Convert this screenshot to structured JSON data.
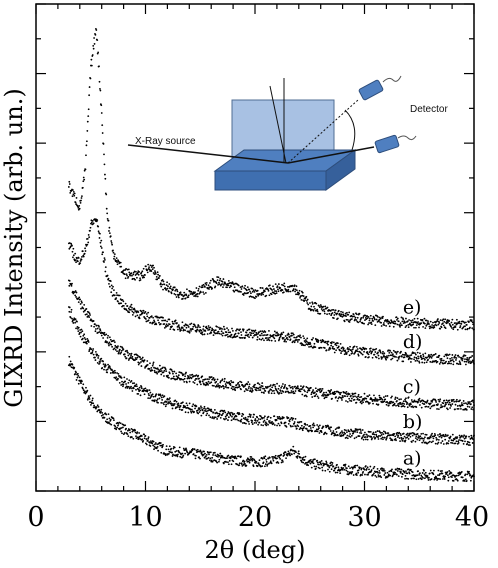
{
  "chart_data": {
    "type": "scatter",
    "xlabel": "2θ (deg)",
    "ylabel": "GIXRD Intensity (arb. un.)",
    "xlim": [
      0,
      40
    ],
    "x_ticks": [
      0,
      10,
      20,
      30,
      40
    ],
    "y_ticks_labeled": false,
    "grid": false,
    "series": [
      {
        "name": "a)",
        "x": [
          3,
          4,
          5,
          6,
          8,
          10,
          12,
          15,
          18,
          20,
          22,
          23.5,
          25,
          28,
          32,
          36,
          40
        ],
        "y": [
          1.8,
          1.5,
          1.25,
          1.05,
          0.85,
          0.7,
          0.55,
          0.5,
          0.42,
          0.4,
          0.42,
          0.55,
          0.38,
          0.3,
          0.25,
          0.22,
          0.2
        ]
      },
      {
        "name": "b)",
        "x": [
          3,
          4,
          5,
          6,
          8,
          10,
          12,
          15,
          18,
          20,
          23,
          25,
          28,
          32,
          36,
          40
        ],
        "y": [
          2.5,
          2.2,
          1.95,
          1.75,
          1.5,
          1.35,
          1.22,
          1.1,
          1.02,
          0.98,
          0.95,
          0.88,
          0.8,
          0.75,
          0.72,
          0.7
        ]
      },
      {
        "name": "c)",
        "x": [
          3,
          4,
          5,
          6,
          8,
          10,
          12,
          15,
          18,
          20,
          23,
          25,
          28,
          32,
          36,
          40
        ],
        "y": [
          2.9,
          2.6,
          2.35,
          2.15,
          1.9,
          1.75,
          1.62,
          1.52,
          1.46,
          1.42,
          1.4,
          1.36,
          1.3,
          1.24,
          1.2,
          1.18
        ]
      },
      {
        "name": "d)",
        "x": [
          3,
          3.8,
          4.5,
          5.0,
          5.5,
          6.0,
          6.5,
          7,
          8,
          10,
          12,
          15,
          18,
          20,
          23,
          25,
          28,
          32,
          36,
          40
        ],
        "y": [
          3.4,
          3.15,
          3.3,
          3.65,
          3.75,
          3.35,
          2.95,
          2.75,
          2.55,
          2.4,
          2.3,
          2.22,
          2.18,
          2.15,
          2.12,
          2.05,
          1.95,
          1.87,
          1.82,
          1.8
        ]
      },
      {
        "name": "e)",
        "x": [
          3,
          4,
          4.5,
          5.0,
          5.5,
          6.0,
          6.5,
          7,
          8,
          9.5,
          10.5,
          11.5,
          13,
          15,
          16.5,
          18,
          20,
          22,
          23.5,
          25,
          28,
          32,
          36,
          40
        ],
        "y": [
          4.2,
          3.9,
          4.4,
          5.8,
          6.4,
          5.2,
          3.8,
          3.3,
          3.0,
          2.95,
          3.1,
          2.85,
          2.7,
          2.75,
          2.88,
          2.8,
          2.72,
          2.78,
          2.82,
          2.55,
          2.4,
          2.33,
          2.3,
          2.28
        ]
      }
    ],
    "inset": {
      "xray_source_label": "X-Ray source",
      "detector_label": "Detector"
    }
  }
}
